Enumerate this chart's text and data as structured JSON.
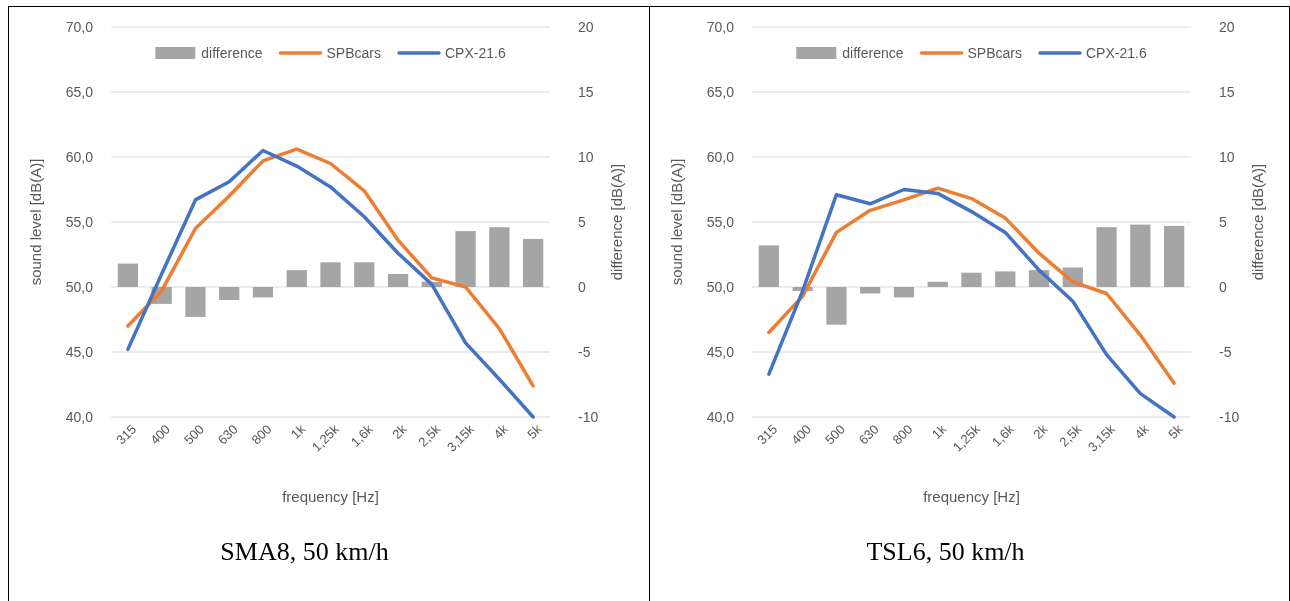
{
  "chart_data": [
    {
      "type": "line",
      "categories": [
        "315",
        "400",
        "500",
        "630",
        "800",
        "1k",
        "1,25k",
        "1,6k",
        "2k",
        "2,5k",
        "3,15k",
        "4k",
        "5k"
      ],
      "xlabel": "frequency [Hz]",
      "ylabel": "sound level [dB(A)]",
      "y2label": "difference [dB(A)]",
      "ylim": [
        40,
        70
      ],
      "yticks": [
        {
          "value": 40,
          "label": "40,0"
        },
        {
          "value": 45,
          "label": "45,0"
        },
        {
          "value": 50,
          "label": "50,0"
        },
        {
          "value": 55,
          "label": "55,0"
        },
        {
          "value": 60,
          "label": "60,0"
        },
        {
          "value": 65,
          "label": "65,0"
        },
        {
          "value": 70,
          "label": "70,0"
        }
      ],
      "y2lim": [
        -10,
        20
      ],
      "y2ticks": [
        -10,
        -5,
        0,
        5,
        10,
        15,
        20
      ],
      "grid": "y",
      "legend": "top",
      "annotations": [
        "SMA8, 50 km/h"
      ],
      "series": [
        {
          "name": "difference",
          "type": "bar",
          "axis": "y2",
          "color": "#a5a5a5",
          "values": [
            1.8,
            -1.3,
            -2.3,
            -1.0,
            -0.8,
            1.3,
            1.9,
            1.9,
            1.0,
            0.4,
            4.3,
            4.6,
            3.7
          ]
        },
        {
          "name": "SPBcars",
          "axis": "y",
          "color": "#ed7d31",
          "values": [
            47.0,
            49.7,
            54.5,
            57.0,
            59.7,
            60.6,
            59.5,
            57.4,
            53.6,
            50.7,
            50.0,
            46.8,
            42.4
          ]
        },
        {
          "name": "CPX-21.6",
          "axis": "y",
          "color": "#4472c4",
          "values": [
            45.2,
            51.0,
            56.7,
            58.1,
            60.5,
            59.3,
            57.7,
            55.4,
            52.6,
            50.2,
            45.7,
            42.9,
            40.0
          ]
        }
      ]
    },
    {
      "type": "line",
      "categories": [
        "315",
        "400",
        "500",
        "630",
        "800",
        "1k",
        "1,25k",
        "1,6k",
        "2k",
        "2,5k",
        "3,15k",
        "4k",
        "5k"
      ],
      "xlabel": "frequency [Hz]",
      "ylabel": "sound level [dB(A)]",
      "y2label": "difference [dB(A)]",
      "ylim": [
        40,
        70
      ],
      "yticks": [
        {
          "value": 40,
          "label": "40,0"
        },
        {
          "value": 45,
          "label": "45,0"
        },
        {
          "value": 50,
          "label": "50,0"
        },
        {
          "value": 55,
          "label": "55,0"
        },
        {
          "value": 60,
          "label": "60,0"
        },
        {
          "value": 65,
          "label": "65,0"
        },
        {
          "value": 70,
          "label": "70,0"
        }
      ],
      "y2lim": [
        -10,
        20
      ],
      "y2ticks": [
        -10,
        -5,
        0,
        5,
        10,
        15,
        20
      ],
      "grid": "y",
      "legend": "top",
      "annotations": [
        "TSL6, 50 km/h"
      ],
      "series": [
        {
          "name": "difference",
          "type": "bar",
          "axis": "y2",
          "color": "#a5a5a5",
          "values": [
            3.2,
            -0.3,
            -2.9,
            -0.5,
            -0.8,
            0.4,
            1.1,
            1.2,
            1.3,
            1.5,
            4.6,
            4.8,
            4.7
          ]
        },
        {
          "name": "SPBcars",
          "axis": "y",
          "color": "#ed7d31",
          "values": [
            46.5,
            49.3,
            54.2,
            55.9,
            56.7,
            57.6,
            56.8,
            55.3,
            52.6,
            50.4,
            49.5,
            46.3,
            42.6
          ]
        },
        {
          "name": "CPX-21.6",
          "axis": "y",
          "color": "#4472c4",
          "values": [
            43.3,
            49.7,
            57.1,
            56.4,
            57.5,
            57.2,
            55.8,
            54.2,
            51.3,
            48.9,
            44.8,
            41.8,
            40.0
          ]
        }
      ]
    }
  ]
}
